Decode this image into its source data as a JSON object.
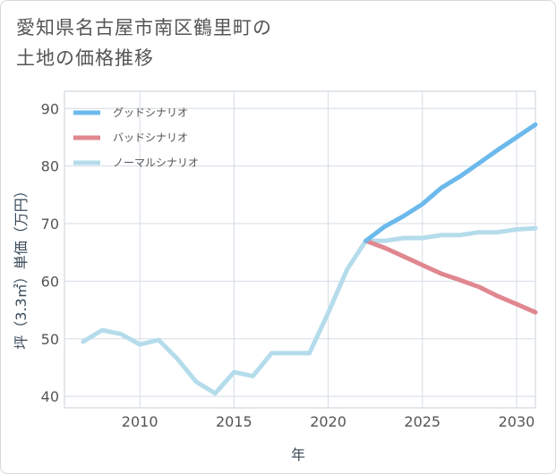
{
  "chart_data": {
    "type": "line",
    "title": "愛知県名古屋市南区鶴里町の土地の価格推移",
    "title_lines": [
      "愛知県名古屋市南区鶴里町の",
      "土地の価格推移"
    ],
    "xlabel": "年",
    "ylabel": "坪（3.3㎡）単価（万円）",
    "xlim": [
      2006,
      2031
    ],
    "ylim": [
      38,
      93
    ],
    "xticks": [
      2010,
      2015,
      2020,
      2025,
      2030
    ],
    "yticks": [
      40,
      50,
      60,
      70,
      80,
      90
    ],
    "grid": true,
    "legend_position": "top-left",
    "series": [
      {
        "name": "グッドシナリオ",
        "color": "#6cb9ec",
        "x": [
          2022,
          2023,
          2024,
          2025,
          2026,
          2027,
          2028,
          2029,
          2030,
          2031
        ],
        "values": [
          67.0,
          69.5,
          71.3,
          73.4,
          76.2,
          78.2,
          80.5,
          82.8,
          85.0,
          87.2
        ]
      },
      {
        "name": "バッドシナリオ",
        "color": "#e0878f",
        "x": [
          2022,
          2023,
          2024,
          2025,
          2026,
          2027,
          2028,
          2029,
          2030,
          2031
        ],
        "values": [
          67.0,
          65.8,
          64.3,
          62.8,
          61.3,
          60.2,
          59.0,
          57.4,
          56.0,
          54.6
        ]
      },
      {
        "name": "ノーマルシナリオ",
        "color": "#b5dceb",
        "x": [
          2007,
          2008,
          2009,
          2010,
          2011,
          2012,
          2013,
          2014,
          2015,
          2016,
          2017,
          2018,
          2019,
          2020,
          2021,
          2022,
          2023,
          2024,
          2025,
          2026,
          2027,
          2028,
          2029,
          2030,
          2031
        ],
        "values": [
          49.5,
          51.5,
          50.8,
          49.0,
          49.8,
          46.5,
          42.5,
          40.5,
          44.2,
          43.5,
          47.5,
          47.5,
          47.5,
          54.5,
          62.0,
          67.0,
          67.0,
          67.5,
          67.5,
          68.0,
          68.0,
          68.5,
          68.5,
          69.0,
          69.2
        ]
      }
    ]
  }
}
